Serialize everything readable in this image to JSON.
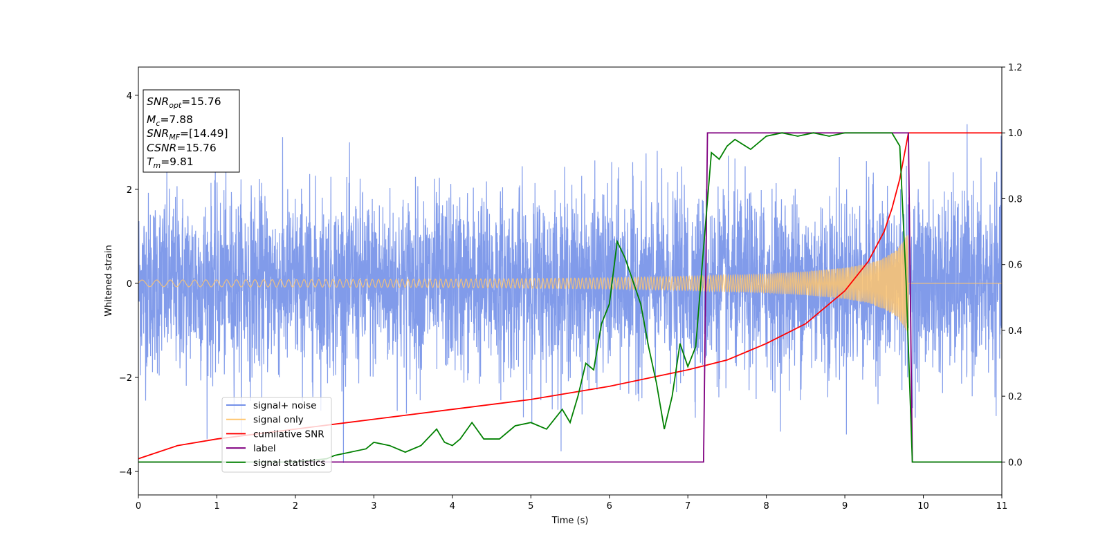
{
  "chart_data": {
    "type": "line",
    "xlabel": "Time (s)",
    "ylabel": "Whitened strain",
    "xlim": [
      0,
      11
    ],
    "ylim": [
      -4.5,
      4.6
    ],
    "y2lim": [
      -0.1,
      1.2
    ],
    "x_ticks": [
      "0",
      "1",
      "2",
      "3",
      "4",
      "5",
      "6",
      "7",
      "8",
      "9",
      "10",
      "11"
    ],
    "y_ticks": [
      "4",
      "2",
      "0",
      "−2",
      "−4"
    ],
    "y2_ticks": [
      "1.2",
      "1.0",
      "0.8",
      "0.6",
      "0.4",
      "0.2",
      "0.0"
    ],
    "grid": false,
    "legend": {
      "location": "lower-left",
      "entries": [
        {
          "name": "signal+ noise",
          "color": "#7390e8"
        },
        {
          "name": "signal only",
          "color": "#ffc56e"
        },
        {
          "name": "cumilative SNR",
          "color": "#ff0000"
        },
        {
          "name": "label",
          "color": "#800080"
        },
        {
          "name": "signal statistics",
          "color": "#008000"
        }
      ]
    },
    "info_box": {
      "lines": [
        {
          "sym": "SNR",
          "sub": "opt",
          "text": "=15.76"
        },
        {
          "sym": "M",
          "sub": "c",
          "text": "=7.88"
        },
        {
          "sym": "SNR",
          "sub": "MF",
          "text": "=[14.49]"
        },
        {
          "sym": "CSNR",
          "sub": "",
          "text": "=15.76"
        },
        {
          "sym": "T",
          "sub": "m",
          "text": "=9.81"
        }
      ]
    },
    "series": [
      {
        "name": "signal+ noise",
        "axis": "left",
        "color": "#7390e8",
        "description_stats": {
          "typical_range": [
            -2.3,
            2.3
          ],
          "max": 4.15,
          "min": -4.1,
          "sample_rate_visual": "dense"
        }
      },
      {
        "name": "signal only",
        "axis": "left",
        "color": "#ffc56e",
        "envelope": {
          "x": [
            0,
            2,
            4,
            6,
            7,
            8,
            8.5,
            9,
            9.3,
            9.5,
            9.65,
            9.75,
            9.81
          ],
          "amp": [
            0.07,
            0.08,
            0.09,
            0.12,
            0.15,
            0.2,
            0.25,
            0.33,
            0.42,
            0.55,
            0.7,
            0.9,
            1.1
          ]
        },
        "merger_time": 9.81
      },
      {
        "name": "cumilative SNR",
        "axis": "right",
        "color": "#ff0000",
        "x": [
          0,
          0.5,
          1,
          2,
          3,
          4,
          5,
          6,
          7,
          7.5,
          8,
          8.5,
          9,
          9.3,
          9.5,
          9.6,
          9.7,
          9.81,
          11
        ],
        "y": [
          0.01,
          0.05,
          0.07,
          0.1,
          0.13,
          0.16,
          0.19,
          0.23,
          0.28,
          0.31,
          0.36,
          0.42,
          0.52,
          0.61,
          0.7,
          0.77,
          0.86,
          1.0,
          1.0
        ]
      },
      {
        "name": "label",
        "axis": "right",
        "color": "#800080",
        "x": [
          0,
          7.2,
          7.25,
          9.81,
          9.86,
          11
        ],
        "y": [
          0,
          0,
          1,
          1,
          0,
          0
        ]
      },
      {
        "name": "signal statistics",
        "axis": "right",
        "color": "#008000",
        "x": [
          0,
          1,
          2,
          2.4,
          2.5,
          2.7,
          2.9,
          3.0,
          3.2,
          3.4,
          3.6,
          3.8,
          3.9,
          4.0,
          4.1,
          4.25,
          4.4,
          4.6,
          4.8,
          5.0,
          5.2,
          5.4,
          5.5,
          5.6,
          5.7,
          5.8,
          5.9,
          6.0,
          6.1,
          6.2,
          6.3,
          6.4,
          6.5,
          6.6,
          6.7,
          6.8,
          6.9,
          7.0,
          7.1,
          7.2,
          7.3,
          7.4,
          7.5,
          7.6,
          7.8,
          8.0,
          8.2,
          8.4,
          8.6,
          8.8,
          9.0,
          9.2,
          9.4,
          9.6,
          9.7,
          9.78,
          9.86,
          10,
          11
        ],
        "y": [
          0.0,
          0.0,
          0.0,
          0.01,
          0.02,
          0.03,
          0.04,
          0.06,
          0.05,
          0.03,
          0.05,
          0.1,
          0.06,
          0.05,
          0.07,
          0.12,
          0.07,
          0.07,
          0.11,
          0.12,
          0.1,
          0.16,
          0.12,
          0.2,
          0.3,
          0.28,
          0.42,
          0.48,
          0.67,
          0.62,
          0.55,
          0.48,
          0.35,
          0.24,
          0.1,
          0.2,
          0.36,
          0.29,
          0.35,
          0.65,
          0.94,
          0.92,
          0.96,
          0.98,
          0.95,
          0.99,
          1.0,
          0.99,
          1.0,
          0.99,
          1.0,
          1.0,
          1.0,
          1.0,
          0.96,
          0.55,
          0.0,
          0.0,
          0.0
        ]
      }
    ]
  }
}
